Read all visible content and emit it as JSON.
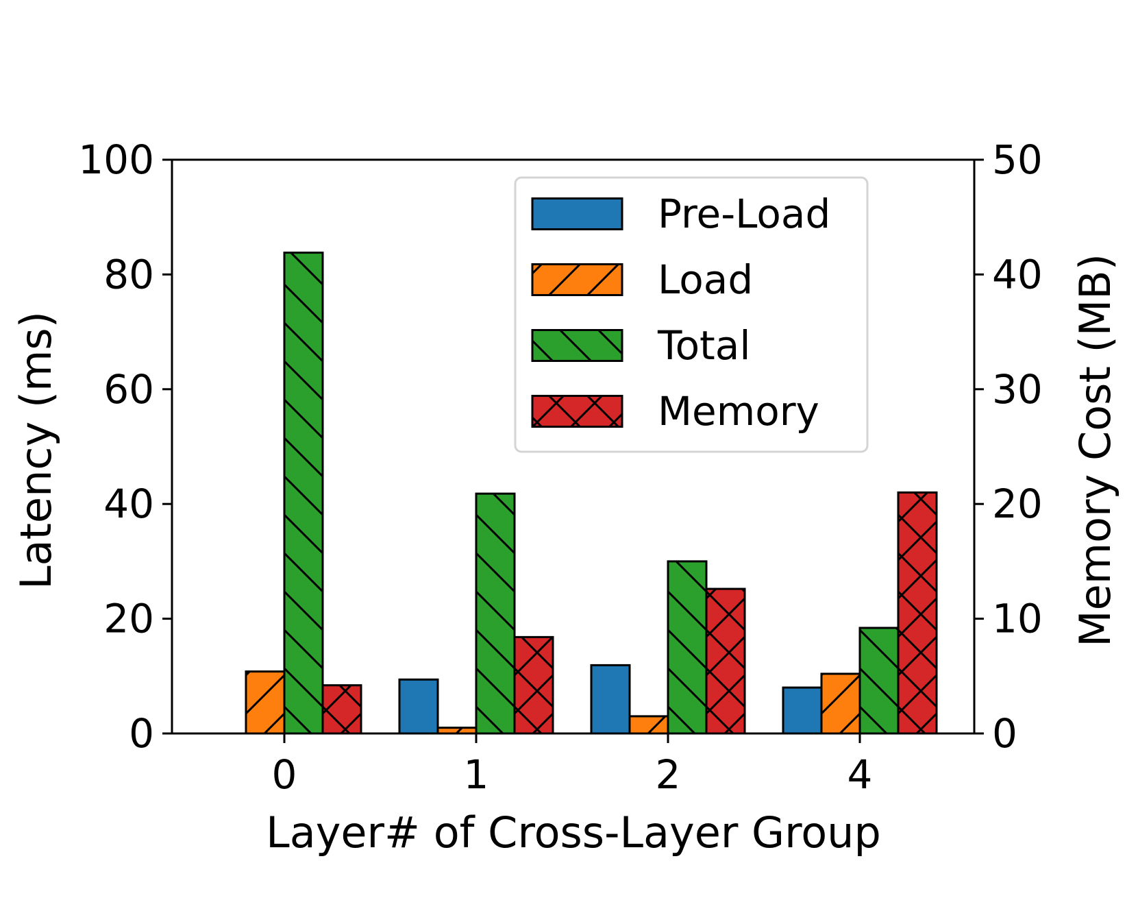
{
  "chart_data": {
    "type": "bar",
    "xlabel": "Layer# of Cross-Layer Group",
    "ylabel": "Latency (ms)",
    "y2label": "Memory Cost (MB)",
    "categories": [
      "0",
      "1",
      "2",
      "4"
    ],
    "ylim": [
      0,
      100
    ],
    "y2lim": [
      0,
      50
    ],
    "yticks": [
      "0",
      "20",
      "40",
      "60",
      "80",
      "100"
    ],
    "y2ticks": [
      "0",
      "10",
      "20",
      "30",
      "40",
      "50"
    ],
    "legend_position": "top-right",
    "series": [
      {
        "name": "Pre-Load",
        "axis": "left",
        "values": [
          0,
          9.4,
          11.9,
          8.0
        ],
        "color": "#1f77b4",
        "hatch": "none"
      },
      {
        "name": "Load",
        "axis": "left",
        "values": [
          10.8,
          1.0,
          3.0,
          10.4
        ],
        "color": "#ff7f0e",
        "hatch": "forward-diagonal"
      },
      {
        "name": "Total",
        "axis": "left",
        "values": [
          83.8,
          41.8,
          30.0,
          18.4
        ],
        "color": "#2ca02c",
        "hatch": "back-diagonal"
      },
      {
        "name": "Memory",
        "axis": "right",
        "values": [
          4.2,
          8.4,
          12.6,
          21.0
        ],
        "color": "#d62728",
        "hatch": "cross"
      }
    ]
  }
}
